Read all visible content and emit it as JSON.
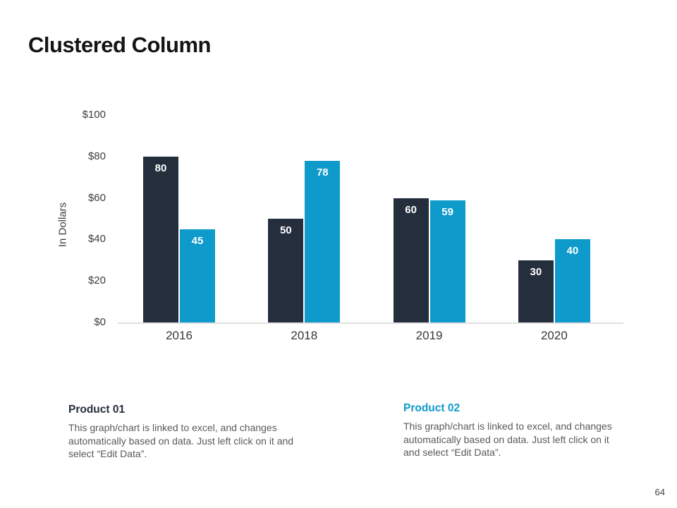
{
  "slide": {
    "title": "Clustered Column",
    "page_number": "64"
  },
  "chart_data": {
    "type": "bar",
    "title": "Clustered Column",
    "categories": [
      "2016",
      "2018",
      "2019",
      "2020"
    ],
    "series": [
      {
        "name": "Product 01",
        "color": "#252E3D",
        "values": [
          80,
          50,
          60,
          30
        ]
      },
      {
        "name": "Product 02",
        "color": "#0E9ACA",
        "values": [
          45,
          78,
          59,
          40
        ]
      }
    ],
    "bar_value_labels": true,
    "value_label_color": "#ffffff",
    "xlabel": "",
    "ylabel": "In Dollars",
    "ylim": [
      0,
      100
    ],
    "ytick_labels": [
      "$100",
      "$80",
      "$60",
      "$40",
      "$20",
      "$0"
    ],
    "grid": false,
    "legend_position": "none",
    "axis_line_color": "#e0e0e0"
  },
  "notes": {
    "left": {
      "title": "Product 01",
      "title_color": "#252E3D",
      "body": "This graph/chart is linked to excel,  and changes automatically based on data. Just left click on it and select “Edit Data”."
    },
    "right": {
      "title": "Product 02",
      "title_color": "#0E9ACA",
      "body": "This graph/chart is linked to excel,  and changes automatically based on data. Just left click on it and select “Edit Data”."
    }
  }
}
